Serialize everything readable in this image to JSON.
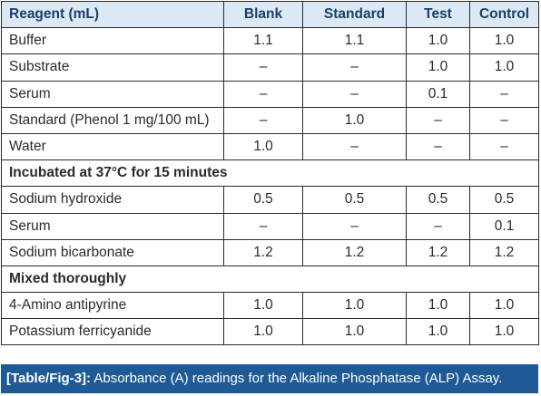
{
  "table": {
    "headers": [
      "Reagent (mL)",
      "Blank",
      "Standard",
      "Test",
      "Control"
    ],
    "rows": [
      {
        "kind": "data",
        "label": "Buffer",
        "values": [
          "1.1",
          "1.1",
          "1.0",
          "1.0"
        ]
      },
      {
        "kind": "data",
        "label": "Substrate",
        "values": [
          "–",
          "–",
          "1.0",
          "1.0"
        ]
      },
      {
        "kind": "data",
        "label": "Serum",
        "values": [
          "–",
          "–",
          "0.1",
          "–"
        ]
      },
      {
        "kind": "data",
        "label": "Standard (Phenol 1 mg/100 mL)",
        "values": [
          "–",
          "1.0",
          "–",
          "–"
        ]
      },
      {
        "kind": "data",
        "label": "Water",
        "values": [
          "1.0",
          "–",
          "–",
          "–"
        ]
      },
      {
        "kind": "section",
        "label": "Incubated at 37°C for 15 minutes"
      },
      {
        "kind": "data",
        "label": "Sodium hydroxide",
        "values": [
          "0.5",
          "0.5",
          "0.5",
          "0.5"
        ]
      },
      {
        "kind": "data",
        "label": "Serum",
        "values": [
          "–",
          "–",
          "–",
          "0.1"
        ]
      },
      {
        "kind": "data",
        "label": "Sodium bicarbonate",
        "values": [
          "1.2",
          "1.2",
          "1.2",
          "1.2"
        ]
      },
      {
        "kind": "section",
        "label": "Mixed thoroughly"
      },
      {
        "kind": "data",
        "label": "4-Amino antipyrine",
        "values": [
          "1.0",
          "1.0",
          "1.0",
          "1.0"
        ]
      },
      {
        "kind": "data",
        "label": "Potassium ferricyanide",
        "values": [
          "1.0",
          "1.0",
          "1.0",
          "1.0"
        ]
      }
    ]
  },
  "caption": {
    "ref": "[Table/Fig-3]:",
    "text": " Absorbance (A) readings for the Alkaline Phosphatase (ALP) Assay."
  },
  "colors": {
    "header_bg": "#dce9f5",
    "header_text": "#1a3e6a",
    "caption_bg": "#1e5a96",
    "caption_text": "#ffffff",
    "grid": "#2a2a2a"
  }
}
